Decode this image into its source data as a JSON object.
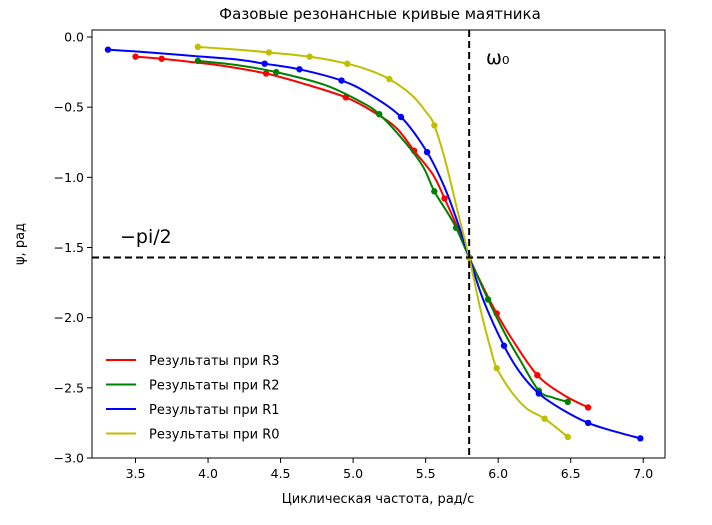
{
  "chart_data": {
    "type": "line",
    "title": "Фазовые резонансные кривые маятника",
    "xlabel": "Циклическая частота, рад/с",
    "ylabel": "ψ, рад",
    "xlim": [
      3.2,
      7.15
    ],
    "ylim": [
      -3.0,
      0.05
    ],
    "xticks": [
      3.5,
      4.0,
      4.5,
      5.0,
      5.5,
      6.0,
      6.5,
      7.0
    ],
    "xtick_labels": [
      "3.5",
      "4.0",
      "4.5",
      "5.0",
      "5.5",
      "6.0",
      "6.5",
      "7.0"
    ],
    "yticks": [
      0.0,
      -0.5,
      -1.0,
      -1.5,
      -2.0,
      -2.5,
      -3.0
    ],
    "ytick_labels": [
      "0.0",
      "−0.5",
      "−1.0",
      "−1.5",
      "−2.0",
      "−2.5",
      "−3.0"
    ],
    "grid": false,
    "legend_position": "lower-left",
    "reference_lines": {
      "vertical_x": 5.8,
      "horizontal_y": -1.5708,
      "vertical_label": "ω₀",
      "horizontal_label": "−pi/2"
    },
    "series": [
      {
        "name": "Результаты при R3",
        "color": "#ff0000",
        "points": {
          "x": [
            3.5,
            3.68,
            4.4,
            4.95,
            5.42,
            5.63,
            5.8,
            5.99,
            6.27,
            6.62
          ],
          "y": [
            -0.14,
            -0.155,
            -0.26,
            -0.43,
            -0.81,
            -1.15,
            -1.5708,
            -1.97,
            -2.41,
            -2.64
          ]
        },
        "curve": {
          "x": [
            3.5,
            3.68,
            3.9,
            4.1,
            4.4,
            4.65,
            4.95,
            5.15,
            5.3,
            5.42,
            5.55,
            5.63,
            5.72,
            5.8,
            5.9,
            5.99,
            6.1,
            6.27,
            6.45,
            6.62
          ],
          "y": [
            -0.14,
            -0.155,
            -0.18,
            -0.205,
            -0.26,
            -0.33,
            -0.43,
            -0.54,
            -0.65,
            -0.81,
            -0.98,
            -1.15,
            -1.36,
            -1.5708,
            -1.79,
            -1.97,
            -2.16,
            -2.41,
            -2.55,
            -2.64
          ]
        }
      },
      {
        "name": "Результаты при R2",
        "color": "#008000",
        "points": {
          "x": [
            3.93,
            4.47,
            5.18,
            5.56,
            5.71,
            5.8,
            5.93,
            6.28,
            6.48
          ],
          "y": [
            -0.17,
            -0.25,
            -0.55,
            -1.1,
            -1.36,
            -1.5708,
            -1.87,
            -2.52,
            -2.6
          ]
        },
        "curve": {
          "x": [
            3.93,
            4.2,
            4.47,
            4.8,
            5.05,
            5.18,
            5.35,
            5.48,
            5.56,
            5.65,
            5.71,
            5.8,
            5.93,
            6.05,
            6.15,
            6.28,
            6.38,
            6.48
          ],
          "y": [
            -0.17,
            -0.2,
            -0.25,
            -0.34,
            -0.46,
            -0.55,
            -0.74,
            -0.92,
            -1.1,
            -1.25,
            -1.36,
            -1.5708,
            -1.87,
            -2.12,
            -2.3,
            -2.52,
            -2.57,
            -2.6
          ]
        }
      },
      {
        "name": "Результаты при R1",
        "color": "#0000ff",
        "points": {
          "x": [
            3.31,
            4.39,
            4.63,
            4.92,
            5.33,
            5.51,
            5.8,
            6.04,
            6.28,
            6.62,
            6.98
          ],
          "y": [
            -0.09,
            -0.19,
            -0.23,
            -0.31,
            -0.57,
            -0.82,
            -1.5708,
            -2.2,
            -2.54,
            -2.75,
            -2.86
          ]
        },
        "curve": {
          "x": [
            3.31,
            3.6,
            3.9,
            4.2,
            4.39,
            4.63,
            4.92,
            5.1,
            5.33,
            5.51,
            5.63,
            5.72,
            5.8,
            5.9,
            6.04,
            6.15,
            6.28,
            6.45,
            6.62,
            6.8,
            6.98
          ],
          "y": [
            -0.09,
            -0.11,
            -0.135,
            -0.16,
            -0.19,
            -0.23,
            -0.31,
            -0.4,
            -0.57,
            -0.82,
            -1.07,
            -1.32,
            -1.5708,
            -1.88,
            -2.2,
            -2.39,
            -2.54,
            -2.66,
            -2.75,
            -2.81,
            -2.86
          ]
        }
      },
      {
        "name": "Результаты при R0",
        "color": "#bfbf00",
        "points": {
          "x": [
            3.93,
            4.42,
            4.7,
            4.96,
            5.25,
            5.56,
            5.8,
            5.99,
            6.32,
            6.48
          ],
          "y": [
            -0.07,
            -0.11,
            -0.14,
            -0.19,
            -0.3,
            -0.63,
            -1.5708,
            -2.36,
            -2.72,
            -2.85
          ]
        },
        "curve": {
          "x": [
            3.93,
            4.2,
            4.42,
            4.7,
            4.96,
            5.12,
            5.25,
            5.4,
            5.5,
            5.56,
            5.64,
            5.72,
            5.8,
            5.88,
            5.95,
            5.99,
            6.1,
            6.2,
            6.32,
            6.48
          ],
          "y": [
            -0.07,
            -0.09,
            -0.11,
            -0.14,
            -0.19,
            -0.24,
            -0.3,
            -0.41,
            -0.53,
            -0.63,
            -0.9,
            -1.24,
            -1.5708,
            -1.95,
            -2.23,
            -2.36,
            -2.54,
            -2.65,
            -2.72,
            -2.85
          ]
        }
      }
    ]
  }
}
